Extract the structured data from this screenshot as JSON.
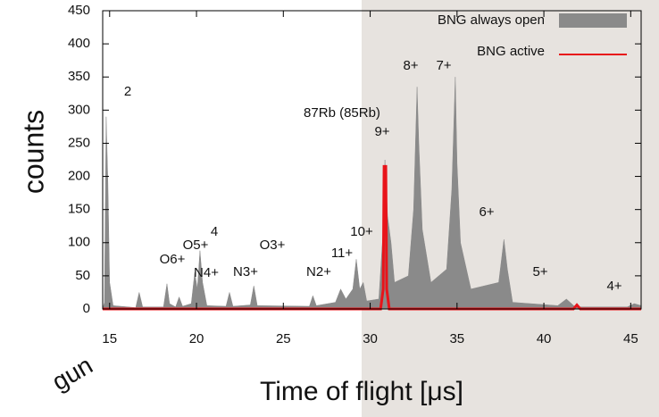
{
  "chart_data": {
    "type": "area",
    "xlabel": "Time of flight [μs]",
    "ylabel": "counts",
    "xlim": [
      14.6,
      45.6
    ],
    "ylim": [
      0,
      450
    ],
    "xticks": [
      15,
      20,
      25,
      30,
      35,
      40,
      45
    ],
    "yticks": [
      0,
      50,
      100,
      150,
      200,
      250,
      300,
      350,
      400,
      450
    ],
    "legend": "top-right",
    "series": [
      {
        "name": "BNG always open",
        "color": "#8a8a8a",
        "type": "area",
        "x": [
          14.6,
          14.7,
          14.75,
          14.8,
          14.85,
          14.9,
          15.0,
          15.2,
          16.5,
          16.7,
          16.9,
          18.1,
          18.3,
          18.45,
          18.8,
          19.0,
          19.2,
          19.7,
          19.9,
          20.05,
          20.2,
          20.35,
          20.6,
          21.7,
          21.9,
          22.1,
          23.1,
          23.3,
          23.5,
          26.5,
          26.7,
          26.9,
          28.0,
          28.3,
          28.6,
          29.0,
          29.2,
          29.4,
          29.6,
          29.8,
          30.5,
          30.75,
          30.85,
          31.0,
          31.2,
          31.4,
          32.2,
          32.5,
          32.7,
          32.8,
          33.0,
          33.5,
          34.4,
          34.7,
          34.9,
          35.0,
          35.2,
          35.8,
          37.4,
          37.7,
          37.9,
          38.2,
          40.8,
          41.3,
          41.8,
          44.8,
          45.2,
          45.6
        ],
        "values": [
          0,
          10,
          150,
          290,
          240,
          190,
          40,
          5,
          2,
          25,
          3,
          3,
          38,
          8,
          3,
          18,
          4,
          8,
          55,
          30,
          88,
          40,
          5,
          4,
          25,
          4,
          6,
          35,
          5,
          4,
          20,
          5,
          10,
          30,
          15,
          30,
          75,
          30,
          40,
          12,
          15,
          120,
          225,
          140,
          100,
          40,
          50,
          150,
          335,
          250,
          120,
          40,
          60,
          180,
          350,
          220,
          100,
          30,
          40,
          105,
          60,
          10,
          5,
          15,
          3,
          3,
          8,
          5
        ]
      },
      {
        "name": "BNG active",
        "color": "#e8141a",
        "type": "line",
        "x": [
          14.6,
          30.6,
          30.75,
          30.8,
          30.9,
          30.95,
          31.1,
          41.7,
          41.9,
          42.1,
          45.6
        ],
        "values": [
          0,
          0,
          30,
          215,
          215,
          30,
          0,
          0,
          6,
          0,
          0
        ]
      }
    ],
    "annotations": [
      "2",
      "87Rb (85Rb)",
      "9+",
      "8+",
      "7+",
      "10+",
      "11+",
      "6+",
      "5+",
      "4+",
      "O5+",
      "4",
      "O6+",
      "N4+",
      "N3+",
      "O3+",
      "N2+"
    ],
    "side_text": "gun"
  }
}
